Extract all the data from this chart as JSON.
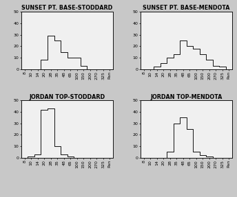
{
  "x_labels": [
    "8",
    "10",
    "14",
    "20",
    "28",
    "35",
    "48",
    "65",
    "100",
    "150",
    "200",
    "270",
    "325",
    "Pan"
  ],
  "n_bins": 14,
  "subplots": [
    {
      "title": "SUNSET PT. BASE-STODDARD",
      "values": [
        0,
        0,
        0,
        8,
        29,
        25,
        15,
        10,
        10,
        3,
        0,
        0,
        0,
        0
      ]
    },
    {
      "title": "SUNSET PT. BASE-MENDOTA",
      "values": [
        0,
        0,
        2,
        5,
        10,
        13,
        25,
        20,
        18,
        13,
        8,
        3,
        2,
        0
      ]
    },
    {
      "title": "JORDAN TOP-STODDARD",
      "values": [
        0,
        1,
        3,
        42,
        43,
        10,
        3,
        1,
        0,
        0,
        0,
        0,
        0,
        0
      ]
    },
    {
      "title": "JORDAN TOP-MENDOTA",
      "values": [
        0,
        0,
        0,
        0,
        5,
        30,
        35,
        25,
        5,
        2,
        1,
        0,
        0,
        0
      ]
    }
  ],
  "ylim": [
    0,
    50
  ],
  "yticks": [
    0,
    10,
    20,
    30,
    40,
    50
  ],
  "bg_color": "#c8c8c8",
  "face_color": "#f0f0f0",
  "line_color": "#111111",
  "title_fontsize": 5.8,
  "tick_fontsize": 4.5,
  "fig_width": 3.44,
  "fig_height": 2.87,
  "dpi": 100
}
